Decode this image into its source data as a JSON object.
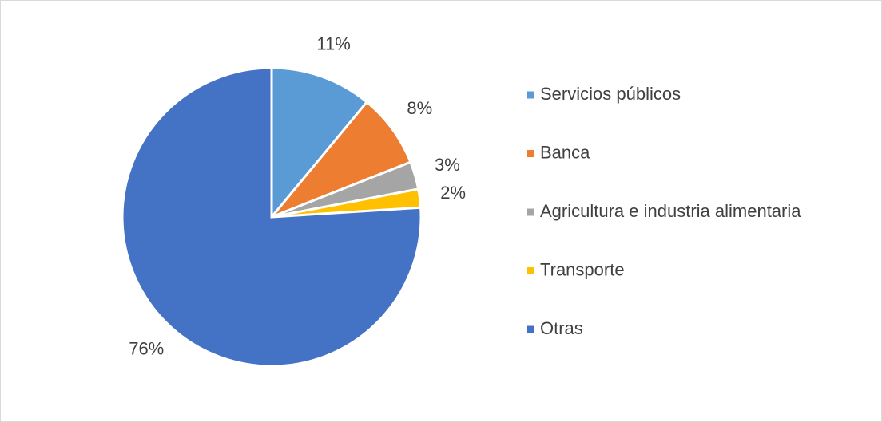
{
  "chart_data": {
    "type": "pie",
    "categories": [
      "Servicios públicos",
      "Banca",
      "Agricultura e industria alimentaria",
      "Transporte",
      "Otras"
    ],
    "values": [
      11,
      8,
      3,
      2,
      76
    ],
    "value_labels": [
      "11%",
      "8%",
      "3%",
      "2%",
      "76%"
    ],
    "colors": [
      "#5b9bd5",
      "#ed7d31",
      "#a5a5a5",
      "#ffc000",
      "#4472c4"
    ],
    "legend": "right"
  }
}
